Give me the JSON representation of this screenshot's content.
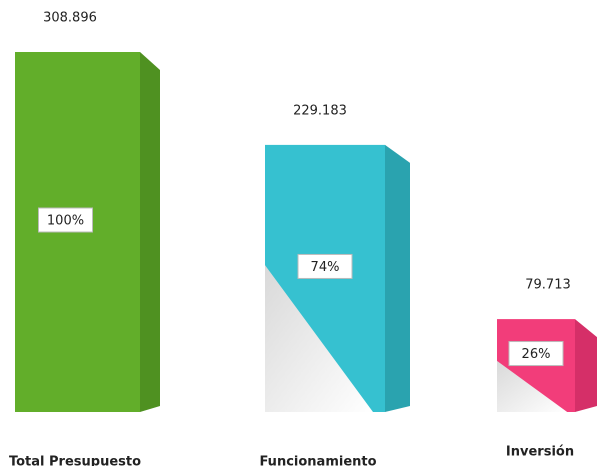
{
  "chart_data": {
    "type": "bar3d",
    "categories": [
      "Total Presupuesto",
      "Funcionamiento",
      "Inversión"
    ],
    "values": [
      308.896,
      229.183,
      79.713
    ],
    "percent_labels": [
      "100%",
      "74%",
      "26%"
    ],
    "colors": [
      "#62ae2a",
      "#36c1d0",
      "#f23d7a"
    ],
    "side_colors": [
      "#4f9121",
      "#2aa3af",
      "#d52f68"
    ]
  }
}
